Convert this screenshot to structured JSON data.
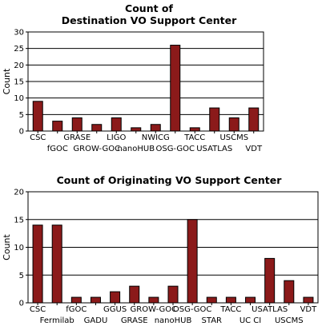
{
  "colors": {
    "bar_fill": "#8b1a1a",
    "bar_edge": "#000000",
    "grid": "#000000",
    "background": "#ffffff"
  },
  "chart_data": [
    {
      "type": "bar",
      "title_lines": [
        "Count of",
        "Destination VO Support Center"
      ],
      "xlabel": "",
      "ylabel": "Count",
      "ylim": [
        0,
        30
      ],
      "yticks": [
        0,
        5,
        10,
        15,
        20,
        25,
        30
      ],
      "grid": true,
      "legend": "none",
      "categories": [
        "CSC",
        "fGOC",
        "GRASE",
        "GROW-GOC",
        "LIGO",
        "nanoHUB",
        "NWICG",
        "OSG-GOC",
        "TACC",
        "USATLAS",
        "USCMS",
        "VDT"
      ],
      "values": [
        9,
        3,
        4,
        2,
        4,
        1,
        2,
        26,
        1,
        7,
        4,
        7
      ]
    },
    {
      "type": "bar",
      "title_lines": [
        "Count of Originating VO Support Center"
      ],
      "xlabel": "",
      "ylabel": "Count",
      "ylim": [
        0,
        20
      ],
      "yticks": [
        0,
        5,
        10,
        15,
        20
      ],
      "grid": true,
      "legend": "none",
      "categories": [
        "CSC",
        "Fermilab",
        "fGOC",
        "GADU",
        "GGUS",
        "GRASE",
        "GROW-GOC",
        "nanoHUB",
        "OSG-GOC",
        "STAR",
        "TACC",
        "UC CI",
        "USATLAS",
        "USCMS",
        "VDT"
      ],
      "values": [
        14,
        14,
        1,
        1,
        2,
        3,
        1,
        3,
        15,
        1,
        1,
        1,
        8,
        4,
        1
      ]
    }
  ]
}
